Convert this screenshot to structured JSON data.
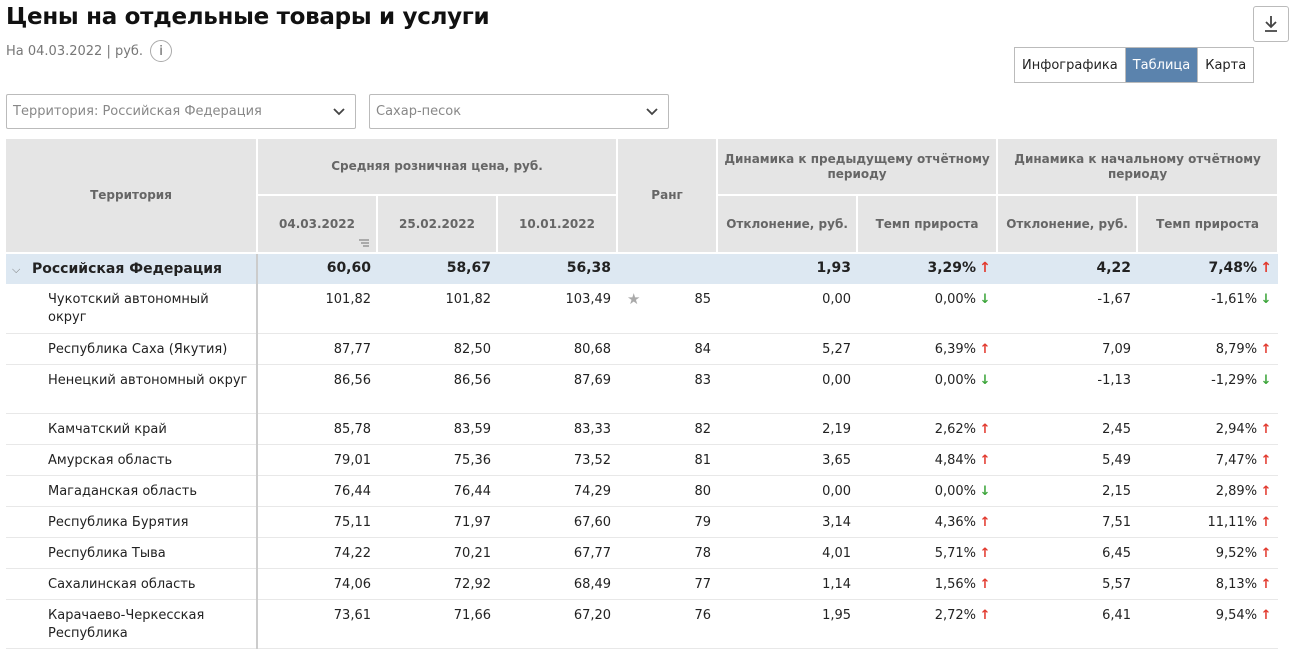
{
  "page": {
    "title": "Цены на отдельные товары и услуги",
    "subtitle": "На 04.03.2022 | руб.",
    "info_icon": "i"
  },
  "view_tabs": [
    "Инфографика",
    "Таблица",
    "Карта"
  ],
  "active_tab": "Таблица",
  "filters": {
    "territory": "Территория: Российская  Федерация",
    "product": "Сахар-песок"
  },
  "table": {
    "headers": {
      "territory": "Территория",
      "avg_price": "Средняя розничная цена, руб.",
      "rank": "Ранг",
      "dyn_prev": "Динамика к предыдущему отчётному периоду",
      "dyn_start": "Динамика к начальному отчётному периоду",
      "date1": "04.03.2022",
      "date2": "25.02.2022",
      "date3": "10.01.2022",
      "dev_prev": "Отклонение, руб.",
      "rate_prev": "Темп прироста",
      "dev_start": "Отклонение, руб.",
      "rate_start": "Темп прироста"
    },
    "total": {
      "name": "Российская Федерация",
      "p1": "60,60",
      "p2": "58,67",
      "p3": "56,38",
      "rank": "",
      "dev_prev": "1,93",
      "rate_prev": "3,29%",
      "dir_prev": "up",
      "dev_start": "4,22",
      "rate_start": "7,48%",
      "dir_start": "up"
    },
    "rows": [
      {
        "name": "Чукотский автономный округ",
        "p1": "101,82",
        "p2": "101,82",
        "p3": "103,49",
        "rank": "85",
        "star": true,
        "dev_prev": "0,00",
        "rate_prev": "0,00%",
        "dir_prev": "down",
        "dev_start": "-1,67",
        "rate_start": "-1,61%",
        "dir_start": "down"
      },
      {
        "name": "Республика Саха (Якутия)",
        "p1": "87,77",
        "p2": "82,50",
        "p3": "80,68",
        "rank": "84",
        "dev_prev": "5,27",
        "rate_prev": "6,39%",
        "dir_prev": "up",
        "dev_start": "7,09",
        "rate_start": "8,79%",
        "dir_start": "up"
      },
      {
        "name": "Ненецкий автономный округ",
        "p1": "86,56",
        "p2": "86,56",
        "p3": "87,69",
        "rank": "83",
        "dev_prev": "0,00",
        "rate_prev": "0,00%",
        "dir_prev": "down",
        "dev_start": "-1,13",
        "rate_start": "-1,29%",
        "dir_start": "down"
      },
      {
        "name": "Камчатский край",
        "p1": "85,78",
        "p2": "83,59",
        "p3": "83,33",
        "rank": "82",
        "dev_prev": "2,19",
        "rate_prev": "2,62%",
        "dir_prev": "up",
        "dev_start": "2,45",
        "rate_start": "2,94%",
        "dir_start": "up"
      },
      {
        "name": "Амурская область",
        "p1": "79,01",
        "p2": "75,36",
        "p3": "73,52",
        "rank": "81",
        "dev_prev": "3,65",
        "rate_prev": "4,84%",
        "dir_prev": "up",
        "dev_start": "5,49",
        "rate_start": "7,47%",
        "dir_start": "up"
      },
      {
        "name": "Магаданская область",
        "p1": "76,44",
        "p2": "76,44",
        "p3": "74,29",
        "rank": "80",
        "dev_prev": "0,00",
        "rate_prev": "0,00%",
        "dir_prev": "down",
        "dev_start": "2,15",
        "rate_start": "2,89%",
        "dir_start": "up"
      },
      {
        "name": "Республика Бурятия",
        "p1": "75,11",
        "p2": "71,97",
        "p3": "67,60",
        "rank": "79",
        "dev_prev": "3,14",
        "rate_prev": "4,36%",
        "dir_prev": "up",
        "dev_start": "7,51",
        "rate_start": "11,11%",
        "dir_start": "up"
      },
      {
        "name": "Республика Тыва",
        "p1": "74,22",
        "p2": "70,21",
        "p3": "67,77",
        "rank": "78",
        "dev_prev": "4,01",
        "rate_prev": "5,71%",
        "dir_prev": "up",
        "dev_start": "6,45",
        "rate_start": "9,52%",
        "dir_start": "up"
      },
      {
        "name": "Сахалинская область",
        "p1": "74,06",
        "p2": "72,92",
        "p3": "68,49",
        "rank": "77",
        "dev_prev": "1,14",
        "rate_prev": "1,56%",
        "dir_prev": "up",
        "dev_start": "5,57",
        "rate_start": "8,13%",
        "dir_start": "up"
      },
      {
        "name": "Карачаево-Черкесская Республика",
        "p1": "73,61",
        "p2": "71,66",
        "p3": "67,20",
        "rank": "76",
        "dev_prev": "1,95",
        "rate_prev": "2,72%",
        "dir_prev": "up",
        "dev_start": "6,41",
        "rate_start": "9,54%",
        "dir_start": "up"
      }
    ]
  },
  "icons": {
    "download": "download-icon",
    "chevron": "chevron-down-icon",
    "star": "star-icon",
    "arrow_up": "↑",
    "arrow_down": "↓",
    "collapse": "⌵"
  },
  "colors": {
    "active_tab": "#5b83ad",
    "total_row": "#dde8f2",
    "header_bg": "#e5e5e5",
    "up_arrow": "#e23a2e",
    "down_arrow": "#3ca53a"
  }
}
